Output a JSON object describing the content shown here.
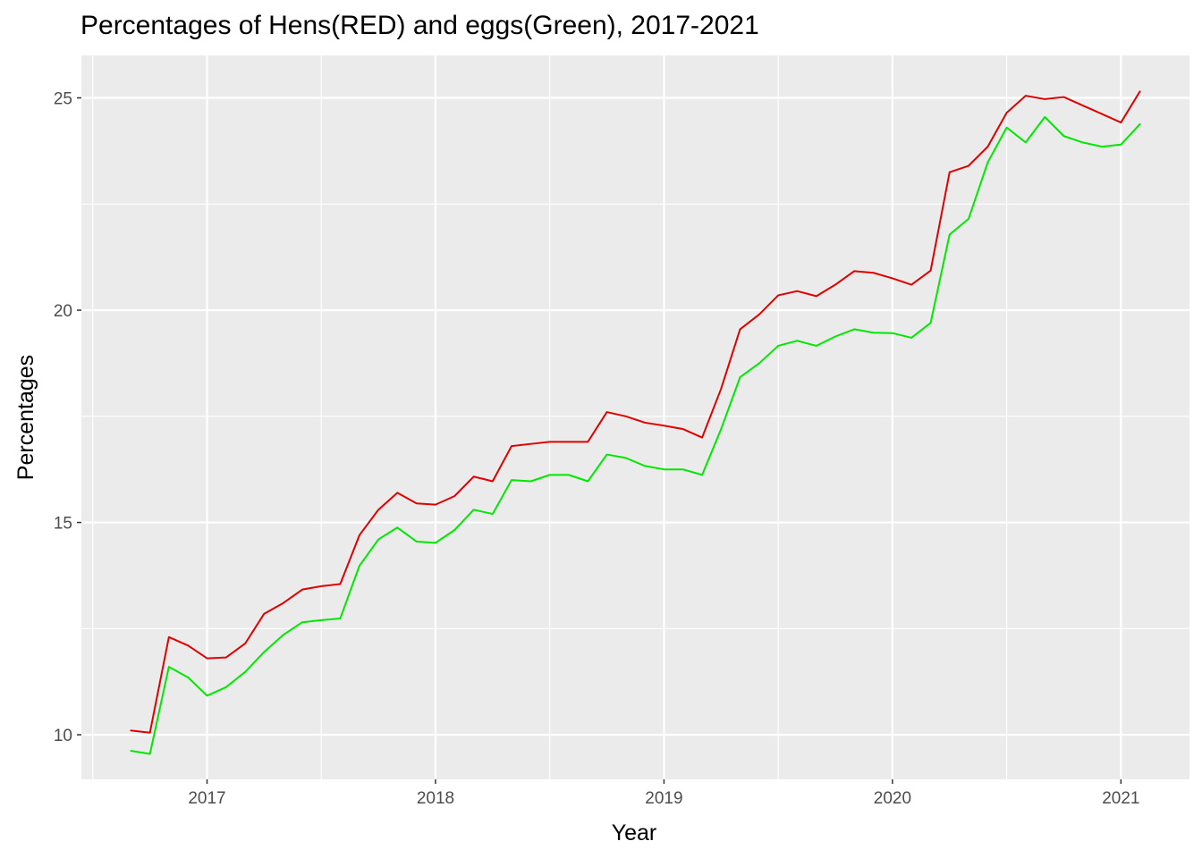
{
  "chart_data": {
    "type": "line",
    "title": "Percentages of Hens(RED) and eggs(Green), 2017-2021",
    "xlabel": "Year",
    "ylabel": "Percentages",
    "xlim": [
      2016.45,
      2021.3
    ],
    "ylim": [
      8.95,
      26.0
    ],
    "x_ticks": [
      2017,
      2018,
      2019,
      2020,
      2021
    ],
    "x_tick_labels": [
      "2017",
      "2018",
      "2019",
      "2020",
      "2021"
    ],
    "x_minor_ticks": [
      2016.5,
      2017.5,
      2018.5,
      2019.5,
      2020.5
    ],
    "y_ticks": [
      10,
      15,
      20,
      25
    ],
    "y_tick_labels": [
      "10",
      "15",
      "20",
      "25"
    ],
    "y_minor_ticks": [
      12.5,
      17.5,
      22.5
    ],
    "grid": true,
    "legend": "none",
    "panel_background": "#ebebeb",
    "grid_color": "#ffffff",
    "x": [
      2016.667,
      2016.75,
      2016.833,
      2016.917,
      2017.0,
      2017.083,
      2017.167,
      2017.25,
      2017.333,
      2017.417,
      2017.5,
      2017.583,
      2017.667,
      2017.75,
      2017.833,
      2017.917,
      2018.0,
      2018.083,
      2018.167,
      2018.25,
      2018.333,
      2018.417,
      2018.5,
      2018.583,
      2018.667,
      2018.75,
      2018.833,
      2018.917,
      2019.0,
      2019.083,
      2019.167,
      2019.25,
      2019.333,
      2019.417,
      2019.5,
      2019.583,
      2019.667,
      2019.75,
      2019.833,
      2019.917,
      2020.0,
      2020.083,
      2020.167,
      2020.25,
      2020.333,
      2020.417,
      2020.5,
      2020.583,
      2020.667,
      2020.75,
      2020.833,
      2020.917,
      2021.0,
      2021.083
    ],
    "series": [
      {
        "color": "#e00000",
        "values": [
          10.1,
          10.05,
          12.3,
          12.1,
          11.8,
          11.82,
          12.15,
          12.85,
          13.1,
          13.42,
          13.5,
          13.55,
          14.7,
          15.3,
          15.7,
          15.45,
          15.42,
          15.62,
          16.08,
          15.97,
          16.8,
          16.85,
          16.9,
          16.9,
          16.9,
          17.6,
          17.5,
          17.35,
          17.28,
          17.2,
          17.0,
          18.15,
          19.55,
          19.9,
          20.35,
          20.45,
          20.33,
          20.6,
          20.92,
          20.88,
          20.75,
          20.6,
          20.93,
          23.25,
          23.4,
          23.85,
          24.65,
          25.05,
          24.97,
          25.02,
          24.82,
          24.62,
          24.42,
          25.15
        ]
      },
      {
        "color": "#00e800",
        "values": [
          9.62,
          9.55,
          11.6,
          11.35,
          10.92,
          11.12,
          11.48,
          11.95,
          12.35,
          12.65,
          12.7,
          12.74,
          13.98,
          14.6,
          14.88,
          14.55,
          14.52,
          14.82,
          15.3,
          15.2,
          16.0,
          15.97,
          16.12,
          16.12,
          15.97,
          16.6,
          16.52,
          16.33,
          16.25,
          16.25,
          16.12,
          17.2,
          18.42,
          18.75,
          19.16,
          19.28,
          19.16,
          19.38,
          19.55,
          19.47,
          19.46,
          19.35,
          19.7,
          21.78,
          22.15,
          23.48,
          24.3,
          23.95,
          24.55,
          24.1,
          23.95,
          23.85,
          23.9,
          24.38
        ]
      }
    ]
  }
}
